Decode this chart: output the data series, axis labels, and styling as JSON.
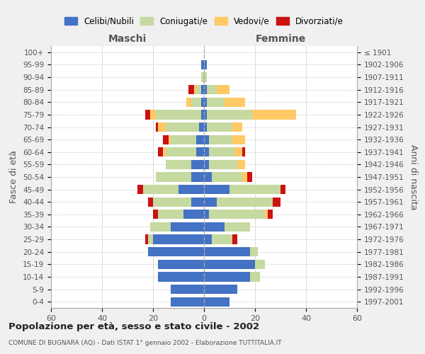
{
  "age_groups": [
    "0-4",
    "5-9",
    "10-14",
    "15-19",
    "20-24",
    "25-29",
    "30-34",
    "35-39",
    "40-44",
    "45-49",
    "50-54",
    "55-59",
    "60-64",
    "65-69",
    "70-74",
    "75-79",
    "80-84",
    "85-89",
    "90-94",
    "95-99",
    "100+"
  ],
  "birth_years": [
    "1997-2001",
    "1992-1996",
    "1987-1991",
    "1982-1986",
    "1977-1981",
    "1972-1976",
    "1967-1971",
    "1962-1966",
    "1957-1961",
    "1952-1956",
    "1947-1951",
    "1942-1946",
    "1937-1941",
    "1932-1936",
    "1927-1931",
    "1922-1926",
    "1917-1921",
    "1912-1916",
    "1907-1911",
    "1902-1906",
    "≤ 1901"
  ],
  "colors": {
    "celibi": "#4472c4",
    "coniugati": "#c5d9a0",
    "vedovi": "#ffc966",
    "divorziati": "#cc1111"
  },
  "male": {
    "celibi": [
      13,
      13,
      18,
      18,
      22,
      20,
      13,
      8,
      5,
      10,
      5,
      5,
      3,
      3,
      2,
      1,
      1,
      1,
      0,
      1,
      0
    ],
    "coniugati": [
      0,
      0,
      0,
      0,
      0,
      2,
      8,
      10,
      15,
      14,
      14,
      10,
      12,
      10,
      13,
      18,
      4,
      2,
      1,
      0,
      0
    ],
    "vedovi": [
      0,
      0,
      0,
      0,
      0,
      0,
      0,
      0,
      0,
      0,
      0,
      0,
      1,
      1,
      3,
      2,
      2,
      1,
      0,
      0,
      0
    ],
    "divorziati": [
      0,
      0,
      0,
      0,
      0,
      1,
      0,
      2,
      2,
      2,
      0,
      0,
      2,
      2,
      1,
      2,
      0,
      2,
      0,
      0,
      0
    ]
  },
  "female": {
    "celibi": [
      10,
      13,
      18,
      20,
      18,
      3,
      8,
      2,
      5,
      10,
      3,
      2,
      2,
      2,
      1,
      1,
      1,
      1,
      0,
      1,
      0
    ],
    "coniugati": [
      0,
      0,
      4,
      4,
      3,
      8,
      10,
      22,
      22,
      20,
      12,
      11,
      10,
      9,
      10,
      18,
      7,
      4,
      1,
      0,
      0
    ],
    "vedovi": [
      0,
      0,
      0,
      0,
      0,
      0,
      0,
      1,
      0,
      0,
      2,
      3,
      3,
      5,
      4,
      17,
      8,
      5,
      0,
      0,
      0
    ],
    "divorziati": [
      0,
      0,
      0,
      0,
      0,
      2,
      0,
      2,
      3,
      2,
      2,
      0,
      1,
      0,
      0,
      0,
      0,
      0,
      0,
      0,
      0
    ]
  },
  "title": "Popolazione per età, sesso e stato civile - 2002",
  "subtitle": "COMUNE DI BUGNARA (AQ) - Dati ISTAT 1° gennaio 2002 - Elaborazione TUTTITALIA.IT",
  "xlabel_left": "Maschi",
  "xlabel_right": "Femmine",
  "ylabel_left": "Fasce di età",
  "ylabel_right": "Anni di nascita",
  "xlim": 60,
  "legend_labels": [
    "Celibi/Nubili",
    "Coniugati/e",
    "Vedovi/e",
    "Divorziati/e"
  ],
  "bg_color": "#f0f0f0",
  "plot_bg_color": "#ffffff",
  "grid_color": "#cccccc"
}
